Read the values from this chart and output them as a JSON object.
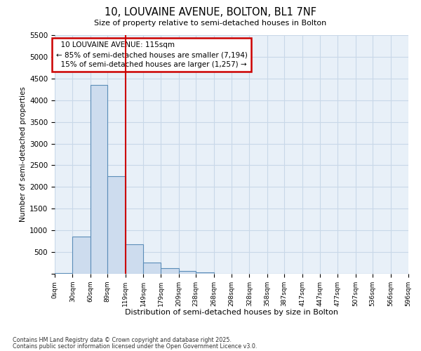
{
  "title1": "10, LOUVAINE AVENUE, BOLTON, BL1 7NF",
  "title2": "Size of property relative to semi-detached houses in Bolton",
  "xlabel": "Distribution of semi-detached houses by size in Bolton",
  "ylabel": "Number of semi-detached properties",
  "property_label": "10 LOUVAINE AVENUE: 115sqm",
  "pct_smaller": 85,
  "n_smaller": 7194,
  "pct_larger": 15,
  "n_larger": 1257,
  "bin_edges": [
    0,
    30,
    60,
    89,
    119,
    149,
    179,
    209,
    238,
    268,
    298,
    328,
    358,
    387,
    417,
    447,
    477,
    507,
    536,
    566,
    596
  ],
  "bar_heights": [
    20,
    850,
    4350,
    2250,
    680,
    260,
    130,
    65,
    40,
    0,
    0,
    0,
    0,
    0,
    0,
    0,
    0,
    0,
    0,
    0
  ],
  "bar_color": "#cddcee",
  "bar_edge_color": "#5b8db8",
  "vline_color": "#cc0000",
  "vline_x": 119,
  "annotation_box_color": "#cc0000",
  "ylim": [
    0,
    5500
  ],
  "yticks": [
    0,
    500,
    1000,
    1500,
    2000,
    2500,
    3000,
    3500,
    4000,
    4500,
    5000,
    5500
  ],
  "grid_color": "#c8d8e8",
  "background_color": "#e8f0f8",
  "footnote1": "Contains HM Land Registry data © Crown copyright and database right 2025.",
  "footnote2": "Contains public sector information licensed under the Open Government Licence v3.0."
}
